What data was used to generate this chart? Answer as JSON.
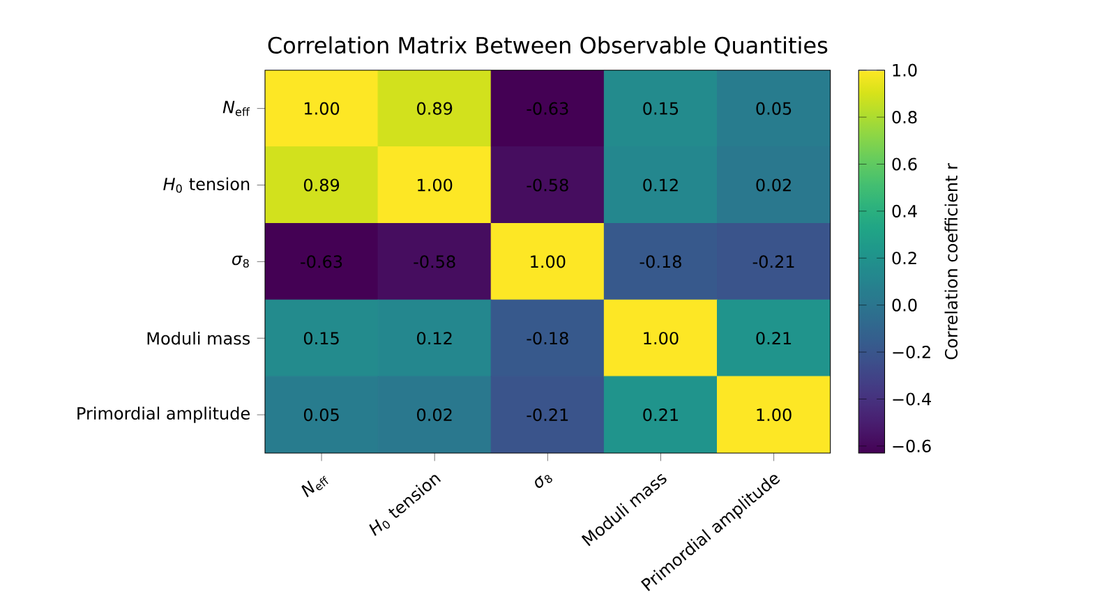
{
  "chart_data": {
    "type": "heatmap",
    "title": "Correlation Matrix Between Observable Quantities",
    "categories": [
      "*N*$_{eff}$",
      "*H*$_{0}$ tension",
      "*σ*$_{8}$",
      "Moduli mass",
      "Primordial amplitude"
    ],
    "y_categories": [
      "*N*$_{eff}$",
      "*H*$_{0}$ tension",
      "*σ*$_{8}$",
      "Moduli mass",
      "Primordial amplitude"
    ],
    "cells": [
      [
        1.0,
        0.89,
        -0.63,
        0.15,
        0.05
      ],
      [
        0.89,
        1.0,
        -0.58,
        0.12,
        0.02
      ],
      [
        -0.63,
        -0.58,
        1.0,
        -0.18,
        -0.21
      ],
      [
        0.15,
        0.12,
        -0.18,
        1.0,
        0.21
      ],
      [
        0.05,
        0.02,
        -0.21,
        0.21,
        1.0
      ]
    ],
    "cell_labels": [
      [
        "1.00",
        "0.89",
        "-0.63",
        "0.15",
        "0.05"
      ],
      [
        "0.89",
        "1.00",
        "-0.58",
        "0.12",
        "0.02"
      ],
      [
        "-0.63",
        "-0.58",
        "1.00",
        "-0.18",
        "-0.21"
      ],
      [
        "0.15",
        "0.12",
        "-0.18",
        "1.00",
        "0.21"
      ],
      [
        "0.05",
        "0.02",
        "-0.21",
        "0.21",
        "1.00"
      ]
    ],
    "clim": [
      -0.63,
      1.0
    ],
    "cticks": [
      {
        "value": -0.6,
        "label": "−0.6"
      },
      {
        "value": -0.4,
        "label": "−0.4"
      },
      {
        "value": -0.2,
        "label": "−0.2"
      },
      {
        "value": 0,
        "label": "0.0"
      },
      {
        "value": 0.2,
        "label": "0.2"
      },
      {
        "value": 0.4,
        "label": "0.4"
      },
      {
        "value": 0.6,
        "label": "0.6"
      },
      {
        "value": 0.8,
        "label": "0.8"
      },
      {
        "value": 1,
        "label": "1.0"
      }
    ],
    "clabel": "Correlation coefficient r"
  }
}
